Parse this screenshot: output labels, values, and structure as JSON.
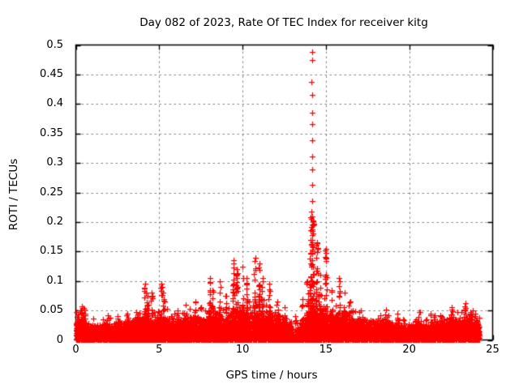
{
  "page": {
    "background": "#ffffff",
    "text_color": "#000000"
  },
  "chart_data": {
    "type": "scatter",
    "title": "Day 082 of 2023, Rate Of TEC Index for receiver kitg",
    "xlabel": "GPS time / hours",
    "ylabel": "ROTI / TECUs",
    "xlim": [
      0,
      25
    ],
    "ylim": [
      0,
      0.5
    ],
    "xticks": [
      0,
      5,
      10,
      15,
      20,
      25
    ],
    "xtick_labels": [
      "0",
      "5",
      "10",
      "15",
      "20",
      "25"
    ],
    "yticks": [
      0,
      0.05,
      0.1,
      0.15,
      0.2,
      0.25,
      0.3,
      0.35,
      0.4,
      0.45,
      0.5
    ],
    "ytick_labels": [
      "0",
      "0.05",
      "0.1",
      "0.15",
      "0.2",
      "0.25",
      "0.3",
      "0.35",
      "0.4",
      "0.45",
      "0.5"
    ],
    "grid": true,
    "legend": "none",
    "marker": {
      "glyph": "plus",
      "color": "#ff0000",
      "size": 7
    },
    "grid_color": "#808080",
    "border_color": "#000000",
    "time_range_hours": [
      0,
      24.2
    ],
    "band_points_per_hour": 380,
    "band_envelope": [
      [
        0.0,
        0.032
      ],
      [
        0.3,
        0.042
      ],
      [
        0.7,
        0.024
      ],
      [
        1.2,
        0.022
      ],
      [
        1.7,
        0.026
      ],
      [
        2.2,
        0.024
      ],
      [
        2.7,
        0.027
      ],
      [
        3.2,
        0.028
      ],
      [
        3.7,
        0.032
      ],
      [
        4.2,
        0.04
      ],
      [
        4.6,
        0.034
      ],
      [
        5.1,
        0.038
      ],
      [
        5.6,
        0.032
      ],
      [
        6.1,
        0.028
      ],
      [
        6.6,
        0.032
      ],
      [
        7.1,
        0.035
      ],
      [
        7.6,
        0.03
      ],
      [
        8.0,
        0.042
      ],
      [
        8.5,
        0.036
      ],
      [
        9.0,
        0.032
      ],
      [
        9.5,
        0.042
      ],
      [
        10.0,
        0.045
      ],
      [
        10.5,
        0.04
      ],
      [
        11.0,
        0.045
      ],
      [
        11.5,
        0.04
      ],
      [
        12.0,
        0.034
      ],
      [
        12.5,
        0.03
      ],
      [
        12.9,
        0.026
      ],
      [
        13.05,
        0.006
      ],
      [
        13.3,
        0.006
      ],
      [
        13.45,
        0.028
      ],
      [
        13.8,
        0.035
      ],
      [
        14.1,
        0.05
      ],
      [
        14.5,
        0.042
      ],
      [
        15.0,
        0.05
      ],
      [
        15.5,
        0.036
      ],
      [
        16.0,
        0.042
      ],
      [
        16.5,
        0.034
      ],
      [
        17.0,
        0.03
      ],
      [
        17.5,
        0.028
      ],
      [
        18.0,
        0.03
      ],
      [
        18.5,
        0.028
      ],
      [
        19.0,
        0.026
      ],
      [
        19.5,
        0.023
      ],
      [
        20.0,
        0.021
      ],
      [
        20.5,
        0.026
      ],
      [
        21.0,
        0.023
      ],
      [
        21.5,
        0.026
      ],
      [
        22.0,
        0.028
      ],
      [
        22.5,
        0.033
      ],
      [
        23.0,
        0.03
      ],
      [
        23.4,
        0.038
      ],
      [
        24.2,
        0.032
      ]
    ],
    "spikes": [
      [
        0.35,
        0.057
      ],
      [
        0.55,
        0.045
      ],
      [
        1.9,
        0.042
      ],
      [
        2.5,
        0.04
      ],
      [
        3.1,
        0.045
      ],
      [
        3.6,
        0.048
      ],
      [
        4.15,
        0.095
      ],
      [
        4.3,
        0.075
      ],
      [
        4.55,
        0.08
      ],
      [
        5.15,
        0.095
      ],
      [
        5.3,
        0.07
      ],
      [
        6.1,
        0.05
      ],
      [
        6.6,
        0.06
      ],
      [
        7.15,
        0.065
      ],
      [
        7.5,
        0.055
      ],
      [
        8.05,
        0.105
      ],
      [
        8.2,
        0.085
      ],
      [
        8.65,
        0.1
      ],
      [
        9.0,
        0.075
      ],
      [
        9.45,
        0.135
      ],
      [
        9.65,
        0.12
      ],
      [
        10.0,
        0.125
      ],
      [
        10.25,
        0.105
      ],
      [
        10.75,
        0.14
      ],
      [
        11.0,
        0.13
      ],
      [
        11.2,
        0.105
      ],
      [
        11.6,
        0.095
      ],
      [
        12.1,
        0.065
      ],
      [
        12.5,
        0.055
      ],
      [
        13.15,
        0.04
      ],
      [
        13.25,
        0.03
      ],
      [
        13.6,
        0.07
      ],
      [
        13.9,
        0.1
      ],
      [
        14.45,
        0.165
      ],
      [
        14.65,
        0.11
      ],
      [
        15.0,
        0.155
      ],
      [
        15.35,
        0.085
      ],
      [
        15.8,
        0.105
      ],
      [
        16.1,
        0.08
      ],
      [
        16.45,
        0.065
      ],
      [
        17.1,
        0.05
      ],
      [
        18.6,
        0.052
      ],
      [
        19.3,
        0.045
      ],
      [
        20.6,
        0.048
      ],
      [
        21.3,
        0.045
      ],
      [
        22.55,
        0.055
      ],
      [
        23.35,
        0.062
      ],
      [
        23.65,
        0.047
      ]
    ],
    "big_spike": {
      "t": 14.17,
      "peak": 0.49,
      "top_points": [
        0.489,
        0.474,
        0.438,
        0.415,
        0.385,
        0.366,
        0.338,
        0.311,
        0.289,
        0.263,
        0.235,
        0.218,
        0.205,
        0.196,
        0.188,
        0.178,
        0.165,
        0.158,
        0.15
      ],
      "cluster_count": 95,
      "cluster_base": 0.04,
      "cluster_top": 0.21,
      "cluster_halfwidth_hours": 0.13
    },
    "outliers": {
      "count": 140,
      "factor_min": 1.05,
      "factor_max": 1.6
    }
  }
}
